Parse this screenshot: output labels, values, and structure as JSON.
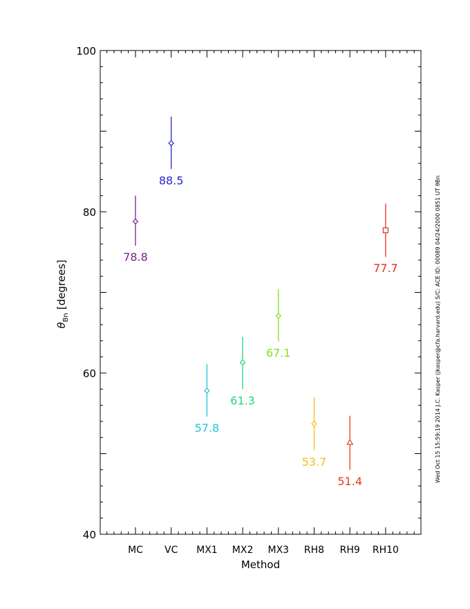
{
  "chart_data": {
    "type": "scatter",
    "ylabel_symbol": "θ",
    "ylabel_sub": "Bn",
    "ylabel_units": "[degrees]",
    "xlabel": "Method",
    "ylim": [
      40,
      100
    ],
    "yticks": [
      40,
      60,
      80,
      100
    ],
    "grid": false,
    "categories": [
      "MC",
      "VC",
      "MX1",
      "MX2",
      "MX3",
      "RH8",
      "RH9",
      "RH10"
    ],
    "points": [
      {
        "label": "MC",
        "value": 78.8,
        "value_text": "78.8",
        "err_low": 75.8,
        "err_high": 82.0,
        "marker": "diamond",
        "color": "#7a1f8f"
      },
      {
        "label": "VC",
        "value": 88.5,
        "value_text": "88.5",
        "err_low": 85.3,
        "err_high": 91.8,
        "marker": "diamond",
        "color": "#2626cc"
      },
      {
        "label": "MX1",
        "value": 57.8,
        "value_text": "57.8",
        "err_low": 54.6,
        "err_high": 61.1,
        "marker": "diamond",
        "color": "#1fc6d8"
      },
      {
        "label": "MX2",
        "value": 61.3,
        "value_text": "61.3",
        "err_low": 58.0,
        "err_high": 64.5,
        "marker": "diamond",
        "color": "#1fd77a"
      },
      {
        "label": "MX3",
        "value": 67.1,
        "value_text": "67.1",
        "err_low": 63.9,
        "err_high": 70.4,
        "marker": "diamond",
        "color": "#7fe21a"
      },
      {
        "label": "RH8",
        "value": 53.7,
        "value_text": "53.7",
        "err_low": 50.4,
        "err_high": 57.0,
        "marker": "diamond",
        "color": "#f2bf14"
      },
      {
        "label": "RH9",
        "value": 51.4,
        "value_text": "51.4",
        "err_low": 48.0,
        "err_high": 54.7,
        "marker": "triangle",
        "color": "#e83a1a"
      },
      {
        "label": "RH10",
        "value": 77.7,
        "value_text": "77.7",
        "err_low": 74.4,
        "err_high": 81.0,
        "marker": "square",
        "color": "#e42a1f"
      }
    ]
  },
  "footer_stamp": "Wed Oct 15 15:59:19 2014   J.C. Kasper (jkasper@cfa.harvard.edu)   S/C: ACE  ID: 00089 04/24/2000  0851 UT θBn"
}
